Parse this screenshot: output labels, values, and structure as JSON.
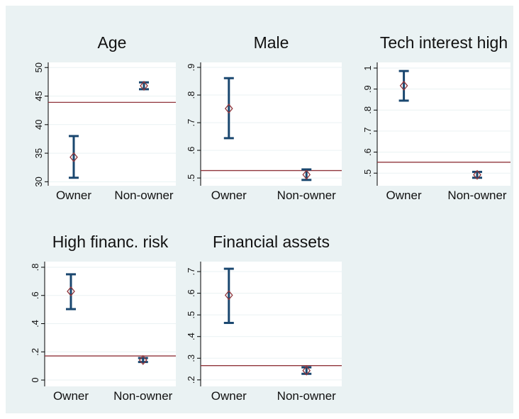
{
  "chart_data": [
    {
      "type": "errorbar",
      "title": "Age",
      "categories": [
        "Owner",
        "Non-owner"
      ],
      "values": [
        34.3,
        46.8
      ],
      "ci_low": [
        30.7,
        46.2
      ],
      "ci_high": [
        38.0,
        47.4
      ],
      "reference": 43.9,
      "ylim": [
        29.3,
        50.9
      ],
      "yticks": [
        30,
        35,
        40,
        45,
        50
      ],
      "grid": true,
      "bar_color": "#1a476f",
      "point_color": "#90353b",
      "reference_color": "#90353b"
    },
    {
      "type": "errorbar",
      "title": "Male",
      "categories": [
        "Owner",
        "Non-owner"
      ],
      "values": [
        0.751,
        0.512
      ],
      "ci_low": [
        0.644,
        0.493
      ],
      "ci_high": [
        0.861,
        0.531
      ],
      "reference": 0.527,
      "ylim": [
        0.472,
        0.918
      ],
      "yticks": [
        {
          "value": 0.5,
          "label": ".5"
        },
        {
          "value": 0.6,
          "label": ".6"
        },
        {
          "value": 0.7,
          "label": ".7"
        },
        {
          "value": 0.8,
          "label": ".8"
        },
        {
          "value": 0.9,
          "label": ".9"
        }
      ],
      "grid": true,
      "bar_color": "#1a476f",
      "point_color": "#90353b",
      "reference_color": "#90353b"
    },
    {
      "type": "errorbar",
      "title": "Tech interest high",
      "categories": [
        "Owner",
        "Non-owner"
      ],
      "values": [
        0.916,
        0.492
      ],
      "ci_low": [
        0.845,
        0.478
      ],
      "ci_high": [
        0.986,
        0.506
      ],
      "reference": 0.552,
      "ylim": [
        0.44,
        1.027
      ],
      "yticks": [
        {
          "value": 0.5,
          "label": ".5"
        },
        {
          "value": 0.6,
          "label": ".6"
        },
        {
          "value": 0.7,
          "label": ".7"
        },
        {
          "value": 0.8,
          "label": ".8"
        },
        {
          "value": 0.9,
          "label": ".9"
        },
        1
      ],
      "grid": true,
      "bar_color": "#1a476f",
      "point_color": "#90353b",
      "reference_color": "#90353b"
    },
    {
      "type": "errorbar",
      "title": "High financ. risk",
      "categories": [
        "Owner",
        "Non-owner"
      ],
      "values": [
        0.629,
        0.142
      ],
      "ci_low": [
        0.503,
        0.128
      ],
      "ci_high": [
        0.75,
        0.156
      ],
      "reference": 0.171,
      "ylim": [
        -0.045,
        0.84
      ],
      "yticks": [
        0,
        {
          "value": 0.2,
          "label": ".2"
        },
        {
          "value": 0.4,
          "label": ".4"
        },
        {
          "value": 0.6,
          "label": ".6"
        },
        {
          "value": 0.8,
          "label": ".8"
        }
      ],
      "grid": true,
      "bar_color": "#1a476f",
      "point_color": "#90353b",
      "reference_color": "#90353b"
    },
    {
      "type": "errorbar",
      "title": "Financial assets",
      "categories": [
        "Owner",
        "Non-owner"
      ],
      "values": [
        0.591,
        0.243
      ],
      "ci_low": [
        0.463,
        0.228
      ],
      "ci_high": [
        0.713,
        0.258
      ],
      "reference": 0.266,
      "ylim": [
        0.17,
        0.746
      ],
      "yticks": [
        {
          "value": 0.2,
          "label": ".2"
        },
        {
          "value": 0.3,
          "label": ".3"
        },
        {
          "value": 0.4,
          "label": ".4"
        },
        {
          "value": 0.5,
          "label": ".5"
        },
        {
          "value": 0.6,
          "label": ".6"
        },
        {
          "value": 0.7,
          "label": ".7"
        }
      ],
      "grid": true,
      "bar_color": "#1a476f",
      "point_color": "#90353b",
      "reference_color": "#90353b"
    }
  ]
}
